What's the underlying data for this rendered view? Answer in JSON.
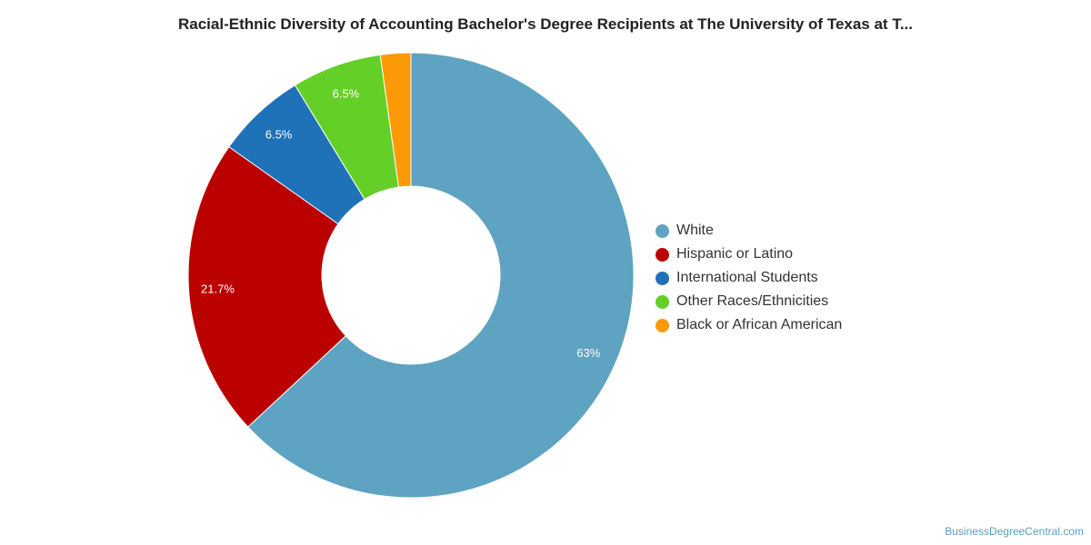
{
  "chart_data": {
    "type": "pie",
    "title": "Racial-Ethnic Diversity of Accounting Bachelor's Degree Recipients at The University of Texas at T...",
    "categories": [
      "White",
      "Hispanic or Latino",
      "International Students",
      "Other Races/Ethnicities",
      "Black or African American"
    ],
    "values": [
      63,
      21.7,
      6.5,
      6.5,
      2.2
    ],
    "labels": [
      "63%",
      "21.7%",
      "6.5%",
      "6.5%",
      ""
    ],
    "colors": [
      "#5ea3c1",
      "#bb0000",
      "#1f72b8",
      "#63cf27",
      "#fb9a06"
    ],
    "donut": true,
    "legend_position": "right"
  },
  "footer": {
    "source": "BusinessDegreeCentral.com"
  }
}
